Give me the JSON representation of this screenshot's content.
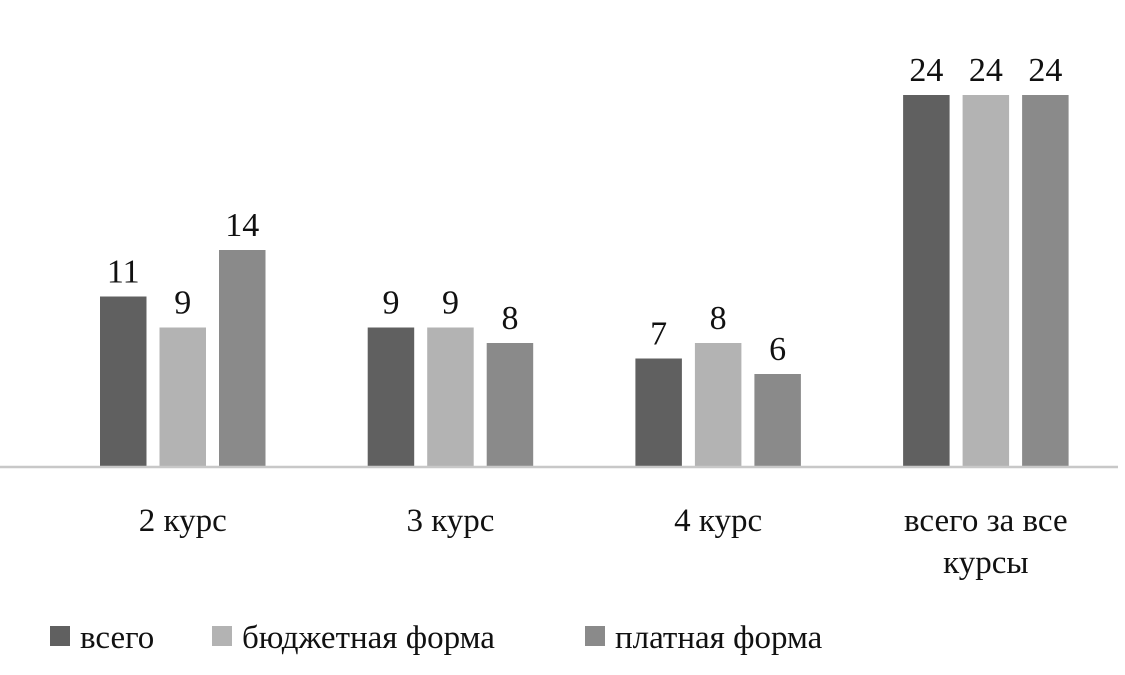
{
  "chart_data": {
    "type": "bar",
    "title": "",
    "xlabel": "",
    "ylabel": "",
    "ylim": [
      0,
      24
    ],
    "grid": false,
    "legend_position": "bottom-left",
    "categories": [
      "2 курс",
      "3 курс",
      "4 курс",
      "всего за все курсы"
    ],
    "category_lines": [
      [
        "2 курс"
      ],
      [
        "3 курс"
      ],
      [
        "4 курс"
      ],
      [
        "всего за все",
        "курсы"
      ]
    ],
    "series": [
      {
        "name": "всего",
        "color": "#606060",
        "values": [
          11,
          9,
          7,
          24
        ]
      },
      {
        "name": "бюджетная форма",
        "color": "#b3b3b3",
        "values": [
          9,
          9,
          8,
          24
        ]
      },
      {
        "name": "платная форма",
        "color": "#8a8a8a",
        "values": [
          14,
          8,
          6,
          24
        ]
      }
    ],
    "axis_color": "#c8c8c8"
  }
}
